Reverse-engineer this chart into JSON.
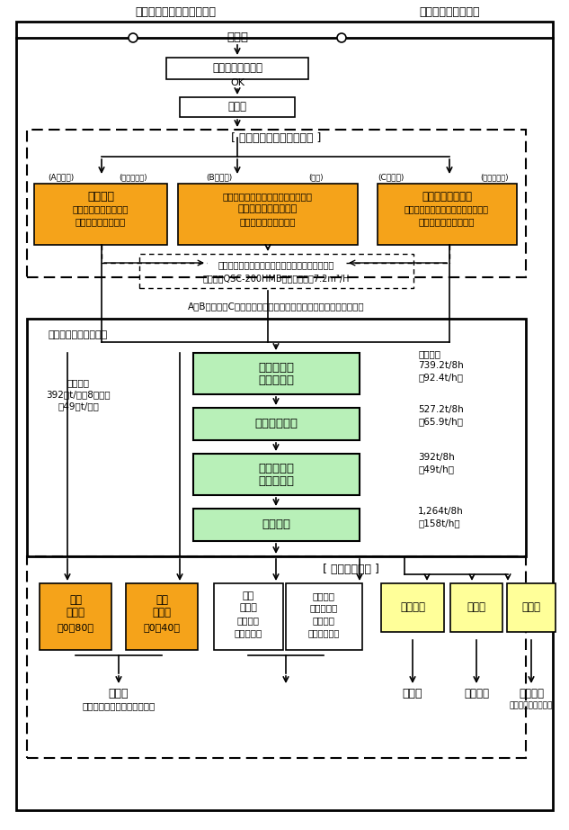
{
  "title_left": "がれき類等破砕処理工程図",
  "title_right": "奥州循環システム㈱",
  "bg_color": "#ffffff",
  "box_white": "#ffffff",
  "box_orange": "#f5a31a",
  "box_green": "#b8f0b8",
  "box_yellow": "#ffff99",
  "border_color": "#000000",
  "fig_width": 6.33,
  "fig_height": 9.22,
  "notes_text": "A・Bヤード、Cヤードの原料は、混合しない様に別々に破砕する。",
  "label_facility": "がれき類破砕処理施設",
  "label_capacity": "処理能力",
  "label_cap_val": "392　t/日（8時間）",
  "label_cap_val2": "（49　t/時）",
  "label_storage_pre": "[ 処分のための保管ヤード ]",
  "label_storage_post": "[ 処分後の保管 ]",
  "label_pretreat1": "鉄筋その他の異物は、前処理ヤードで除去する。",
  "label_pretreat2": "前処理　QSC-200HMB　処理能力　7.2m³/H",
  "label_hairi": "搬　入",
  "label_visual": "搬入物の目視検査",
  "label_ok": "OK",
  "label_keikaku": "計　量",
  "label_a_yard": "(Aヤード)",
  "label_a_waste": "(産廃・一廃)",
  "label_b_yard": "(Bヤード)",
  "label_b_waste": "(産廃)",
  "label_c_yard": "(Cヤード)",
  "label_c_waste": "(産廃・一廃)",
  "box_a_line1": "がれき類",
  "box_a_line2": "（コンクリート廃材・",
  "box_a_line3": "アスファルト廃材）",
  "box_b_line1": "ガラスくず、コンクリートくず及び",
  "box_b_line2": "陶磁器くず、がれき類",
  "box_b_line3": "（コンクリート廃材）",
  "box_c_line1": "その他のがれき類",
  "box_c_line2": "（コンクリート廃材やアスファルト",
  "box_c_line3": "廃材以外のがれき類）",
  "label_grizly1": "グリズリー",
  "label_grizly2": "フィーダー",
  "label_crusher": "クラッシャー",
  "label_impeller1": "インペラー",
  "label_impeller2": "ブレーカー",
  "label_vibration": "振動篩機",
  "cap_grizly1": "処理能力",
  "cap_grizly2": "739.2t/8h",
  "cap_grizly3": "（92.4t/h）",
  "cap_crusher1": "527.2t/8h",
  "cap_crusher2": "（65.9t/h）",
  "cap_impeller1": "392t/8h",
  "cap_impeller2": "（49t/h）",
  "cap_vibration1": "1,264t/8h",
  "cap_vibration2": "（158t/h）",
  "box_regen1_l1": "再生",
  "box_regen1_l2": "路盤材",
  "box_regen1_l3": "（0〜80）",
  "box_regen2_l1": "再生",
  "box_regen2_l2": "路盤材",
  "box_regen2_l3": "（0〜40）",
  "box_ceramic_l1": "破砕",
  "box_ceramic_l2": "陶磁器",
  "box_ceramic_l3": "（化粧・",
  "box_ceramic_l4": "敷砂利用）",
  "box_other_l1": "その他の",
  "box_other_l2": "破砕がれき",
  "box_other_l3": "（盛土・",
  "box_other_l4": "植栽材利用）",
  "box_metal": "金属くず",
  "box_waste_pla": "廃プラ",
  "box_wood": "木くず",
  "label_sell1": "売　却",
  "label_region": "胆江地区工事業者・近隣農家",
  "label_sell2": "売　却",
  "label_process": "処理委託",
  "label_self": "自社処理",
  "label_wood_facility": "（木くず破砕施設）"
}
